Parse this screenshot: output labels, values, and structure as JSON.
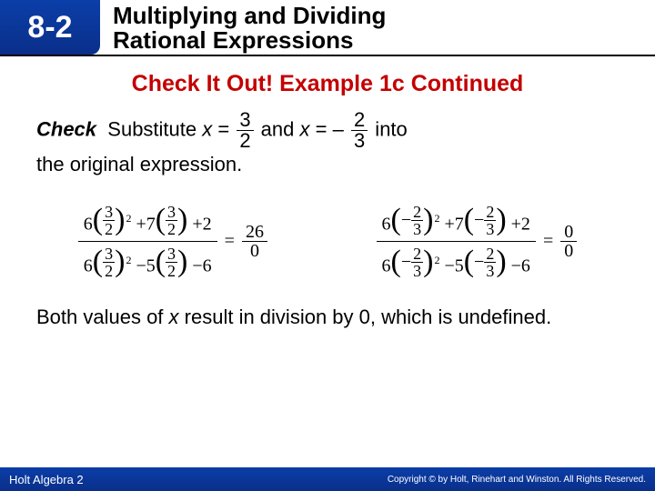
{
  "header": {
    "chapter": "8-2",
    "title_line1": "Multiplying and Dividing",
    "title_line2": "Rational Expressions"
  },
  "section": "Check It Out! Example 1c Continued",
  "check": {
    "label": "Check",
    "pre": "Substitute ",
    "var1": "x",
    "eq": " = ",
    "f1_num": "3",
    "f1_den": "2",
    "mid": " and ",
    "var2": "x",
    "neg": " – ",
    "f2_num": "2",
    "f2_den": "3",
    "post": " into",
    "line2": "the original expression."
  },
  "eqA": {
    "c6a": "6",
    "c6b": "6",
    "fn": "3",
    "fd": "2",
    "p7": "+7",
    "p2": "+2",
    "m5": "−5",
    "m6": "−6",
    "rnum": "26",
    "rden": "0"
  },
  "eqB": {
    "c6a": "6",
    "c6b": "6",
    "fn": "2",
    "fd": "3",
    "neg": "−",
    "p7": "+7",
    "p2": "+2",
    "m5": "−5",
    "m6": "−6",
    "rnum": "0",
    "rden": "0"
  },
  "conclusion": {
    "t1": "Both values of ",
    "x": "x",
    "t2": " result in division by 0, which is undefined."
  },
  "footer": {
    "book": "Holt Algebra 2",
    "copyright": "Copyright © by Holt, Rinehart and Winston. All Rights Reserved."
  }
}
